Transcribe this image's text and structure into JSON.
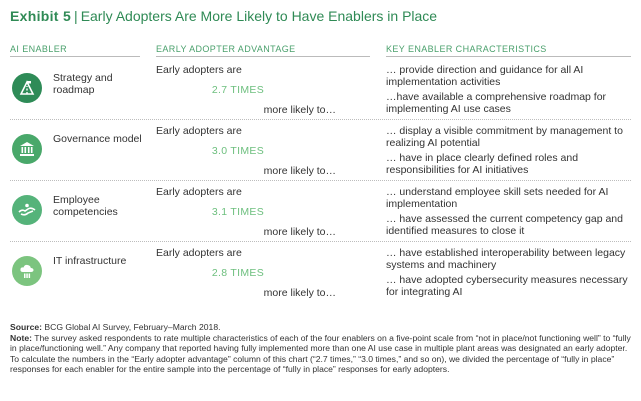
{
  "header": {
    "exhibit": "Exhibit 5",
    "separator": "|",
    "title": "Early Adopters Are More Likely to Have Enablers in Place"
  },
  "columns": {
    "enabler": "AI ENABLER",
    "advantage": "EARLY ADOPTER ADVANTAGE",
    "characteristics": "KEY ENABLER CHARACTERISTICS"
  },
  "rows": [
    {
      "icon": "strategy-roadmap-icon",
      "icon_color": "#2e8b57",
      "name": "Strategy and roadmap",
      "adv_prefix": "Early adopters are",
      "adv_value": "2.7 TIMES",
      "adv_suffix": "more likely to…",
      "char1": "… provide direction and guidance for all AI implementation activities",
      "char2": "…have available a comprehensive roadmap for implementing AI use cases"
    },
    {
      "icon": "governance-building-icon",
      "icon_color": "#49a86a",
      "name": "Governance model",
      "adv_prefix": "Early adopters are",
      "adv_value": "3.0 TIMES",
      "adv_suffix": "more likely to…",
      "char1": "… display a visible commitment by management to realizing AI potential",
      "char2": "… have in place clearly defined roles and responsibilities for AI initiatives"
    },
    {
      "icon": "employee-competencies-icon",
      "icon_color": "#55b37a",
      "name": "Employee competencies",
      "adv_prefix": "Early adopters are",
      "adv_value": "3.1 TIMES",
      "adv_suffix": "more likely to…",
      "char1": "… understand employee skill sets needed for AI implementation",
      "char2": "… have assessed the current competency gap and identified measures to close it"
    },
    {
      "icon": "it-infrastructure-cloud-icon",
      "icon_color": "#7cc47f",
      "name": "IT infrastructure",
      "adv_prefix": "Early adopters are",
      "adv_value": "2.8 TIMES",
      "adv_suffix": "more likely to…",
      "char1": "… have established interoperability between legacy systems and machinery",
      "char2": "… have adopted cybersecurity measures necessary for integrating AI"
    }
  ],
  "footnote": {
    "source_label": "Source:",
    "source_text": "BCG Global AI Survey, February–March 2018.",
    "note_label": "Note:",
    "note_text": "The survey asked respondents to rate multiple characteristics of each of the four enablers on a five-point scale from “not in place/not functioning well” to “fully in place/functioning well.” Any company that reported having fully implemented more than one AI use case in multiple plant areas was designated an early adopter. To calculate the numbers in the “Early adopter advantage” column of this chart (“2.7 times,” “3.0 times,” and so on), we divided the percentage of “fully in place” responses for each enabler for the entire sample into the percentage of “fully in place” responses for early adopters."
  }
}
